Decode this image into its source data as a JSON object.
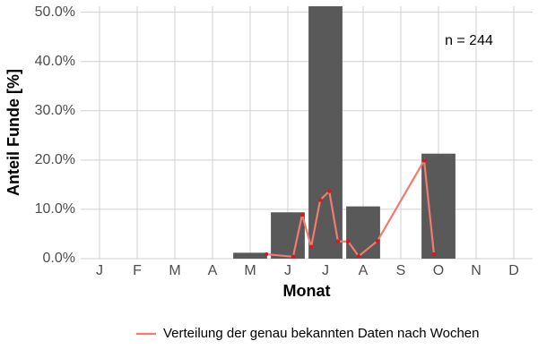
{
  "chart_data": {
    "type": "bar",
    "y_label": "Anteil Funde [%]",
    "x_label": "Monat",
    "annotation": "n = 244",
    "xlim": [
      0.5,
      12.5
    ],
    "xticks": [
      {
        "value": 1,
        "label": "J"
      },
      {
        "value": 2,
        "label": "F"
      },
      {
        "value": 3,
        "label": "M"
      },
      {
        "value": 4,
        "label": "A"
      },
      {
        "value": 5,
        "label": "M"
      },
      {
        "value": 6,
        "label": "J"
      },
      {
        "value": 7,
        "label": "J"
      },
      {
        "value": 8,
        "label": "A"
      },
      {
        "value": 9,
        "label": "S"
      },
      {
        "value": 10,
        "label": "O"
      },
      {
        "value": 11,
        "label": "N"
      },
      {
        "value": 12,
        "label": "D"
      }
    ],
    "ylim": [
      0,
      51.2
    ],
    "yticks": [
      {
        "value": 0,
        "label": "0.0%"
      },
      {
        "value": 10,
        "label": "10.0%"
      },
      {
        "value": 20,
        "label": "20.0%"
      },
      {
        "value": 30,
        "label": "30.0%"
      },
      {
        "value": 40,
        "label": "40.0%"
      },
      {
        "value": 50,
        "label": "50.0%"
      }
    ],
    "grid": true,
    "bars": {
      "color": "#595959",
      "x": [
        1,
        2,
        3,
        4,
        5,
        6,
        7,
        8,
        9,
        10,
        11,
        12
      ],
      "values": [
        0,
        0,
        0,
        0,
        1.2,
        9.4,
        51.2,
        10.6,
        0,
        21.3,
        0,
        0
      ]
    },
    "line": {
      "name": "Verteilung der genau bekannten Daten nach Wochen",
      "color": "#f07b6e",
      "point_color": "#d7191c",
      "x": [
        5.43,
        6.14,
        6.38,
        6.62,
        6.86,
        7.1,
        7.33,
        7.6,
        7.88,
        8.38,
        9.62,
        9.88
      ],
      "values": [
        0.9,
        0.4,
        8.9,
        2.4,
        11.9,
        13.7,
        3.5,
        3.5,
        0.5,
        3.6,
        19.9,
        0.9
      ]
    },
    "legend": "bottom"
  }
}
